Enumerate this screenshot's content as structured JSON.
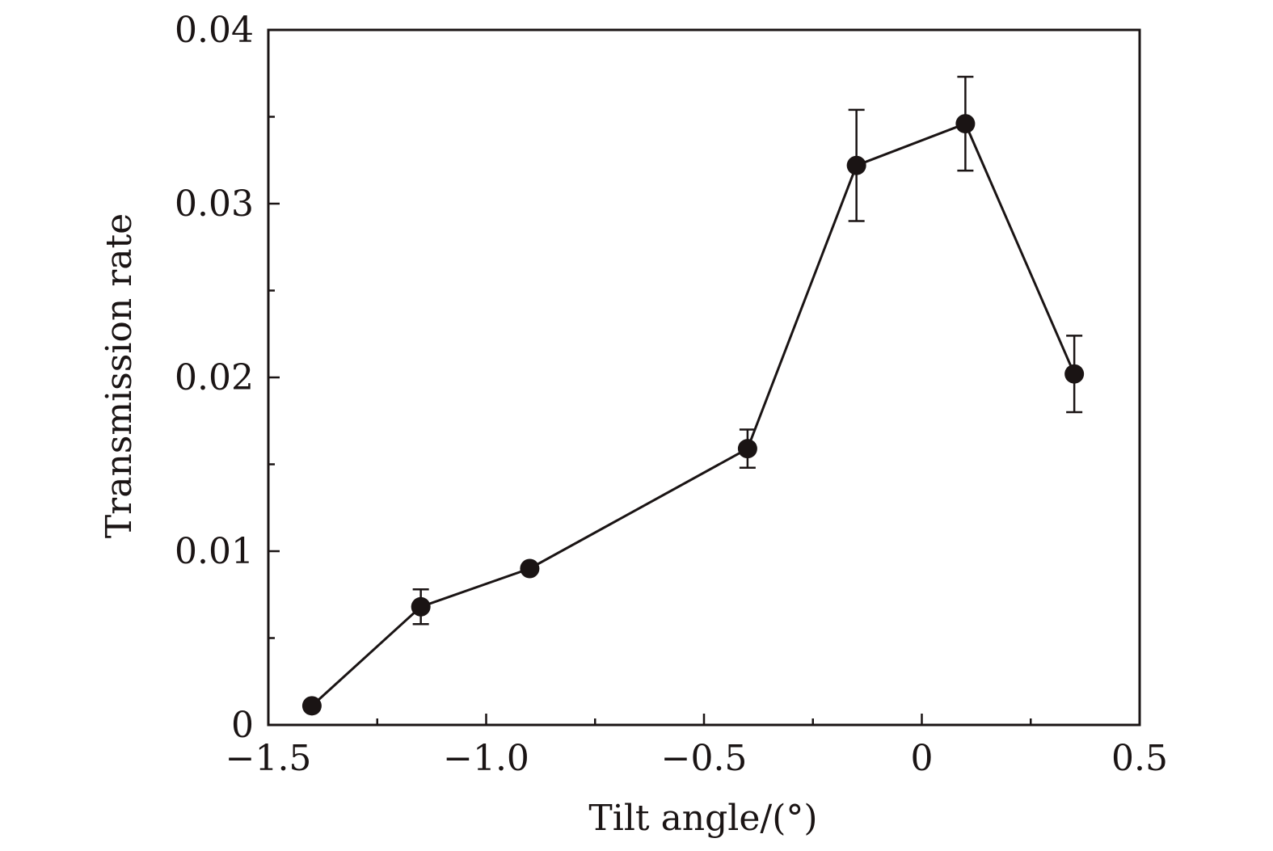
{
  "chart_data": {
    "type": "line",
    "xlabel": "Tilt angle/(°)",
    "ylabel": "Transmission rate",
    "xlim": [
      -1.5,
      0.5
    ],
    "ylim": [
      0,
      0.04
    ],
    "x_ticks": [
      {
        "value": -1.5,
        "label": "−1.5"
      },
      {
        "value": -1.0,
        "label": "−1.0"
      },
      {
        "value": -0.5,
        "label": "−0.5"
      },
      {
        "value": 0,
        "label": "0"
      },
      {
        "value": 0.5,
        "label": "0.5"
      }
    ],
    "x_minor_ticks": [
      -1.25,
      -0.75,
      -0.25,
      0.25
    ],
    "y_ticks": [
      {
        "value": 0,
        "label": "0"
      },
      {
        "value": 0.01,
        "label": "0.01"
      },
      {
        "value": 0.02,
        "label": "0.02"
      },
      {
        "value": 0.03,
        "label": "0.03"
      },
      {
        "value": 0.04,
        "label": "0.04"
      }
    ],
    "y_minor_ticks": [
      0.005,
      0.015,
      0.025,
      0.035
    ],
    "grid": false,
    "marker": "filled-circle",
    "colors": {
      "series": "#1a1414",
      "axes": "#1a1414",
      "background": "#ffffff"
    },
    "series": [
      {
        "points": [
          {
            "x": -1.4,
            "y": 0.0011,
            "err": 0
          },
          {
            "x": -1.15,
            "y": 0.0068,
            "err": 0.001
          },
          {
            "x": -0.9,
            "y": 0.009,
            "err": 0
          },
          {
            "x": -0.4,
            "y": 0.0159,
            "err": 0.0011
          },
          {
            "x": -0.15,
            "y": 0.0322,
            "err": 0.0032
          },
          {
            "x": 0.1,
            "y": 0.0346,
            "err": 0.0027
          },
          {
            "x": 0.35,
            "y": 0.0202,
            "err": 0.0022
          }
        ]
      }
    ]
  }
}
